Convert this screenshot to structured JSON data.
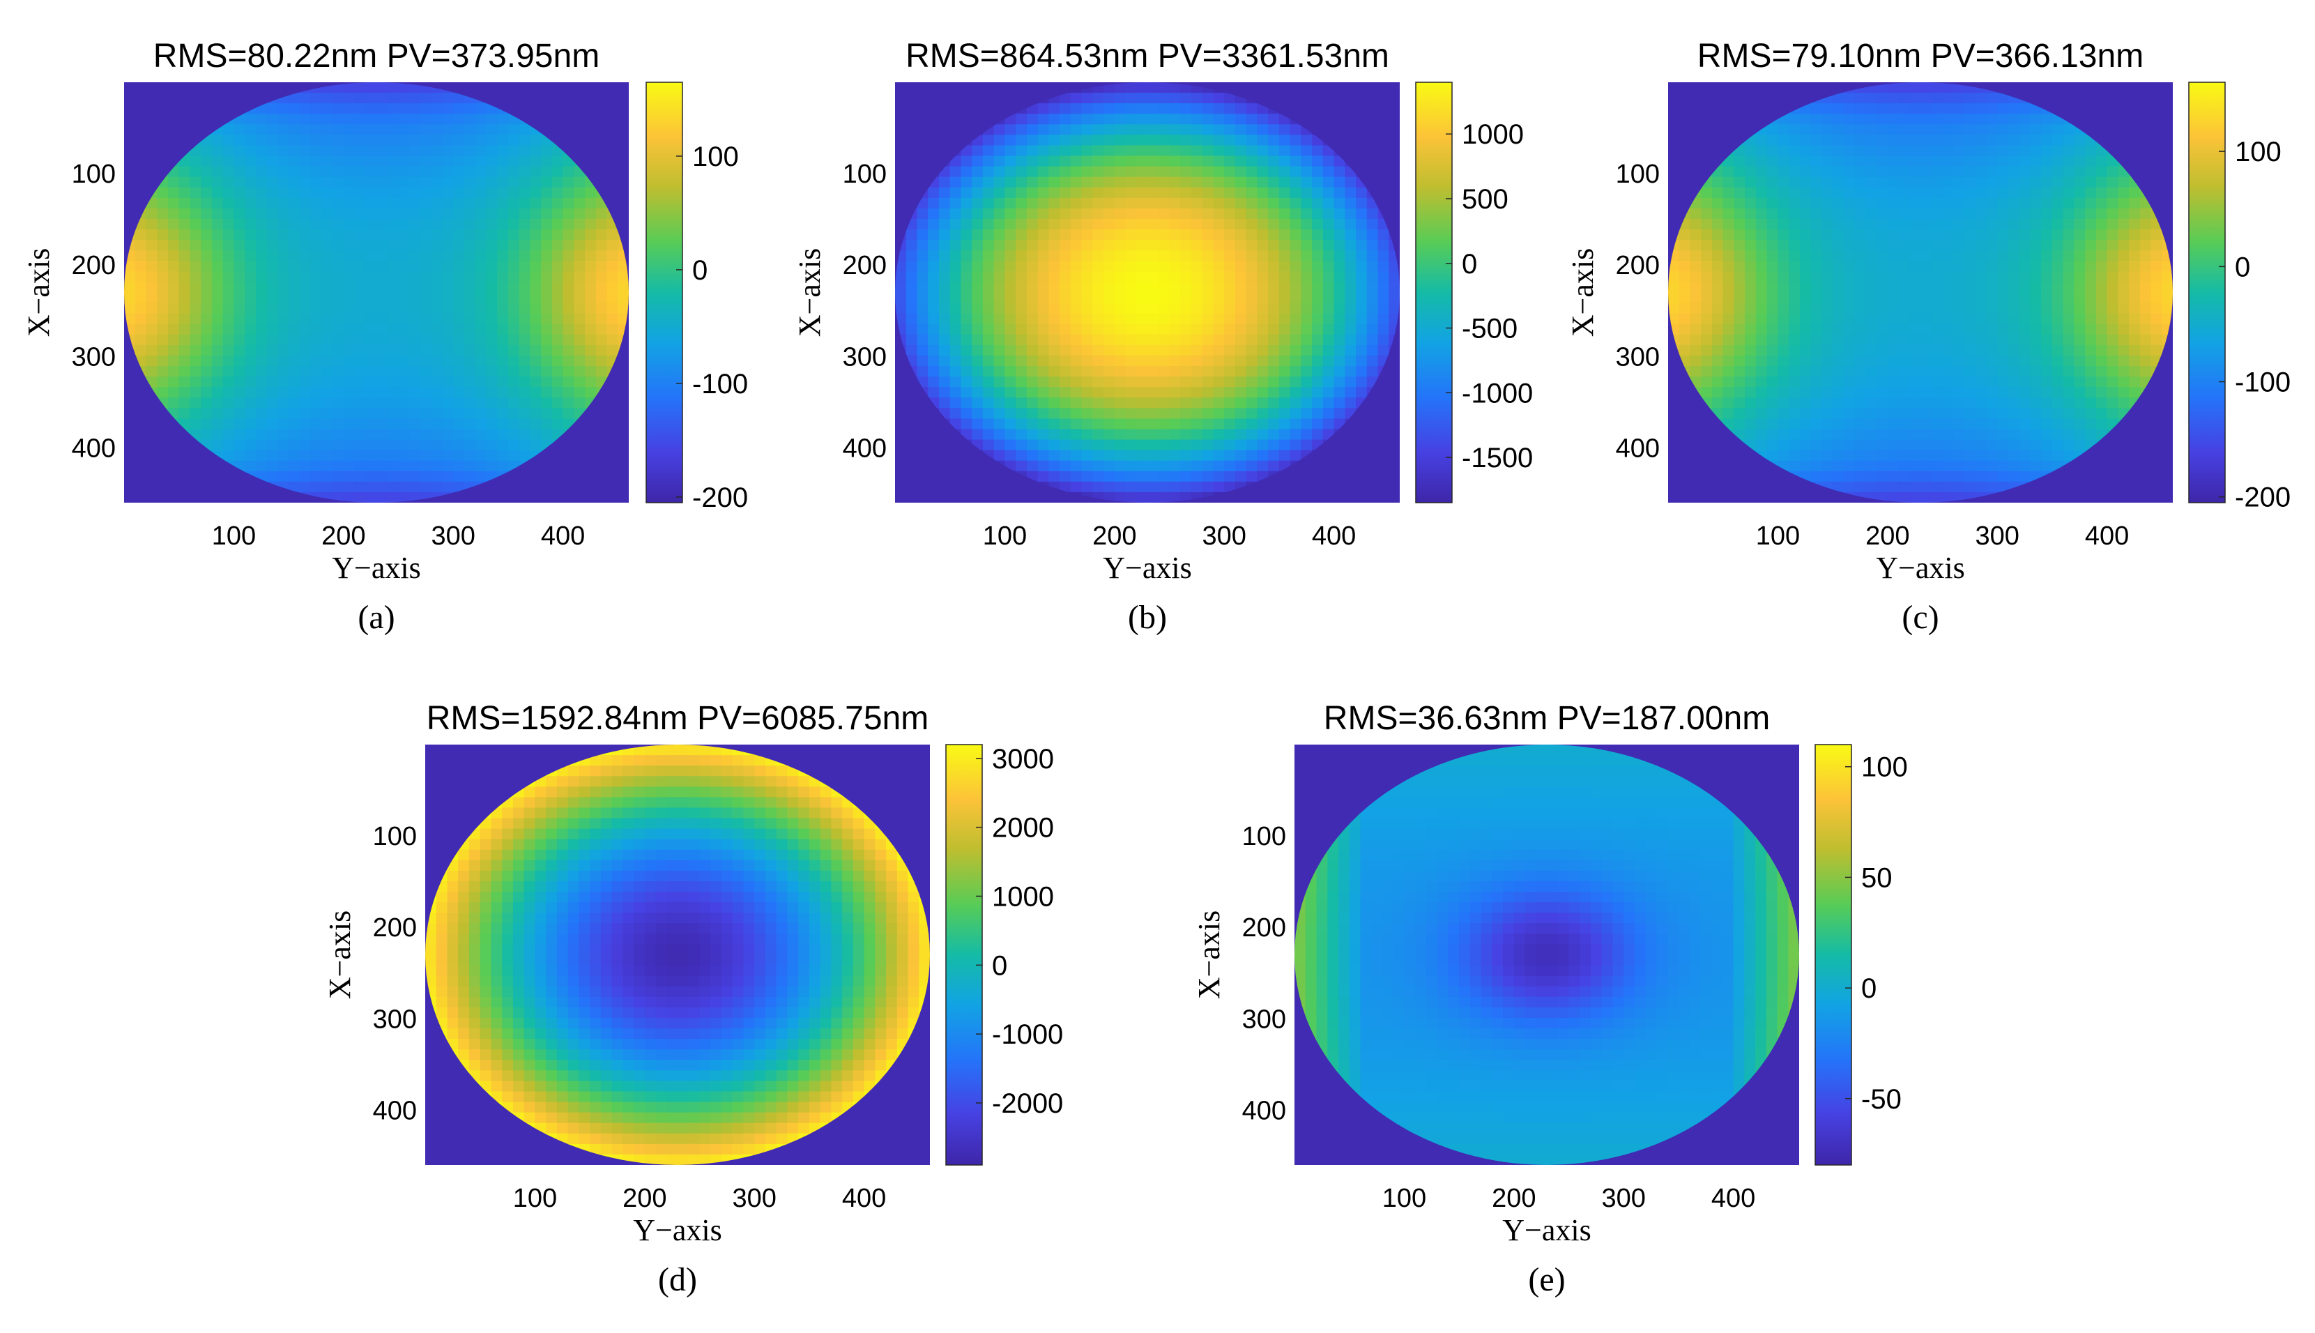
{
  "chart_data": [
    {
      "type": "heatmap",
      "title": "RMS=80.22nm PV=373.95nm",
      "xlabel": "Y−axis",
      "ylabel": "X−axis",
      "caption": "(a)",
      "xlim": [
        0,
        460
      ],
      "ylim": [
        0,
        460
      ],
      "xticks": [
        100,
        200,
        300,
        400
      ],
      "yticks": [
        100,
        200,
        300,
        400
      ],
      "colorbar": {
        "min": -205,
        "max": 165,
        "ticks": [
          100,
          0,
          -100,
          -200
        ]
      },
      "pattern": "saddle",
      "colormap": "parula"
    },
    {
      "type": "heatmap",
      "title": "RMS=864.53nm PV=3361.53nm",
      "xlabel": "Y−axis",
      "ylabel": "X−axis",
      "caption": "(b)",
      "xlim": [
        0,
        460
      ],
      "ylim": [
        0,
        460
      ],
      "xticks": [
        100,
        200,
        300,
        400
      ],
      "yticks": [
        100,
        200,
        300,
        400
      ],
      "colorbar": {
        "min": -1850,
        "max": 1400,
        "ticks": [
          1000,
          500,
          0,
          -500,
          -1000,
          -1500
        ]
      },
      "pattern": "dome",
      "colormap": "parula"
    },
    {
      "type": "heatmap",
      "title": "RMS=79.10nm PV=366.13nm",
      "xlabel": "Y−axis",
      "ylabel": "X−axis",
      "caption": "(c)",
      "xlim": [
        0,
        460
      ],
      "ylim": [
        0,
        460
      ],
      "xticks": [
        100,
        200,
        300,
        400
      ],
      "yticks": [
        100,
        200,
        300,
        400
      ],
      "colorbar": {
        "min": -205,
        "max": 160,
        "ticks": [
          100,
          0,
          -100,
          -200
        ]
      },
      "pattern": "saddle",
      "colormap": "parula"
    },
    {
      "type": "heatmap",
      "title": "RMS=1592.84nm PV=6085.75nm",
      "xlabel": "Y−axis",
      "ylabel": "X−axis",
      "caption": "(d)",
      "xlim": [
        0,
        460
      ],
      "ylim": [
        0,
        460
      ],
      "xticks": [
        100,
        200,
        300,
        400
      ],
      "yticks": [
        100,
        200,
        300,
        400
      ],
      "colorbar": {
        "min": -2900,
        "max": 3200,
        "ticks": [
          3000,
          2000,
          1000,
          0,
          -1000,
          -2000
        ]
      },
      "pattern": "bowl",
      "colormap": "parula"
    },
    {
      "type": "heatmap",
      "title": "RMS=36.63nm PV=187.00nm",
      "xlabel": "Y−axis",
      "ylabel": "X−axis",
      "caption": "(e)",
      "xlim": [
        0,
        460
      ],
      "ylim": [
        0,
        460
      ],
      "xticks": [
        100,
        200,
        300,
        400
      ],
      "yticks": [
        100,
        200,
        300,
        400
      ],
      "colorbar": {
        "min": -80,
        "max": 110,
        "ticks": [
          100,
          50,
          0,
          -50
        ]
      },
      "pattern": "residual",
      "colormap": "parula"
    }
  ]
}
